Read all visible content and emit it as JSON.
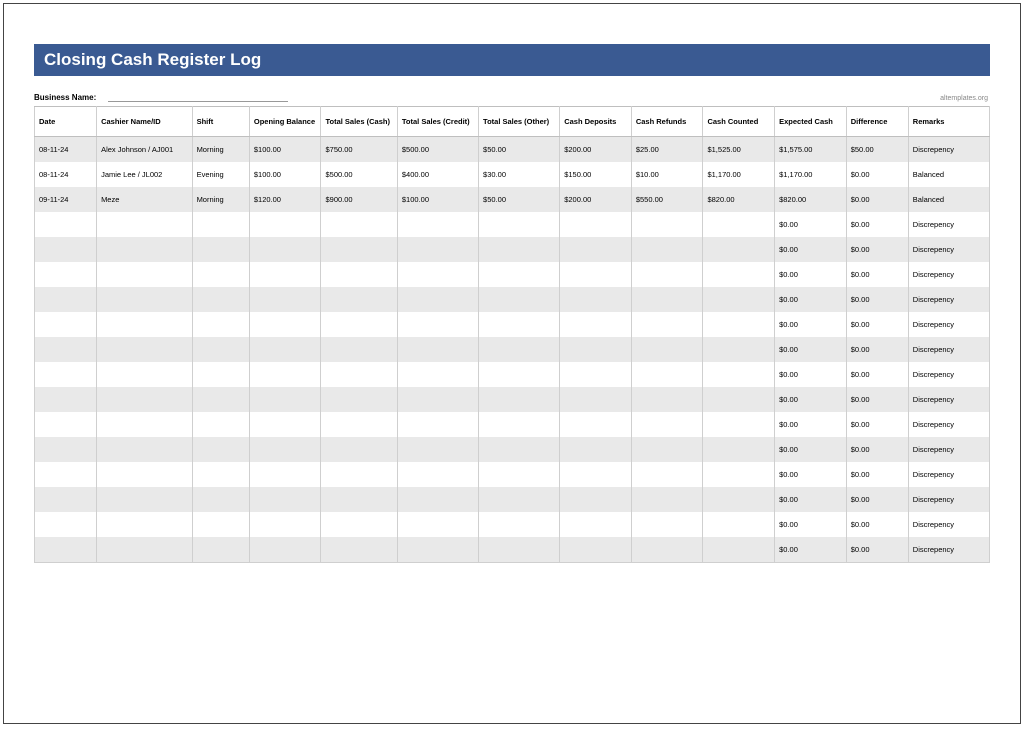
{
  "title": "Closing Cash Register Log",
  "business_label": "Business Name:",
  "business_value": "",
  "attribution": "altemplates.org",
  "colors": {
    "title_bg": "#3a5a92",
    "title_text": "#ffffff",
    "row_alt_bg": "#e9e9e9",
    "row_bg": "#ffffff",
    "border": "#cfcfcf"
  },
  "columns": [
    "Date",
    "Cashier Name/ID",
    "Shift",
    "Opening Balance",
    "Total Sales (Cash)",
    "Total Sales (Credit)",
    "Total Sales (Other)",
    "Cash Deposits",
    "Cash Refunds",
    "Cash Counted",
    "Expected Cash",
    "Difference",
    "Remarks"
  ],
  "rows": [
    [
      "08-11-24",
      "Alex Johnson / AJ001",
      "Morning",
      "$100.00",
      "$750.00",
      "$500.00",
      "$50.00",
      "$200.00",
      "$25.00",
      "$1,525.00",
      "$1,575.00",
      "$50.00",
      "Discrepency"
    ],
    [
      "08-11-24",
      "Jamie Lee / JL002",
      "Evening",
      "$100.00",
      "$500.00",
      "$400.00",
      "$30.00",
      "$150.00",
      "$10.00",
      "$1,170.00",
      "$1,170.00",
      "$0.00",
      "Balanced"
    ],
    [
      "09-11-24",
      "Meze",
      "Morning",
      "$120.00",
      "$900.00",
      "$100.00",
      "$50.00",
      "$200.00",
      "$550.00",
      "$820.00",
      "$820.00",
      "$0.00",
      "Balanced"
    ],
    [
      "",
      "",
      "",
      "",
      "",
      "",
      "",
      "",
      "",
      "",
      "$0.00",
      "$0.00",
      "Discrepency"
    ],
    [
      "",
      "",
      "",
      "",
      "",
      "",
      "",
      "",
      "",
      "",
      "$0.00",
      "$0.00",
      "Discrepency"
    ],
    [
      "",
      "",
      "",
      "",
      "",
      "",
      "",
      "",
      "",
      "",
      "$0.00",
      "$0.00",
      "Discrepency"
    ],
    [
      "",
      "",
      "",
      "",
      "",
      "",
      "",
      "",
      "",
      "",
      "$0.00",
      "$0.00",
      "Discrepency"
    ],
    [
      "",
      "",
      "",
      "",
      "",
      "",
      "",
      "",
      "",
      "",
      "$0.00",
      "$0.00",
      "Discrepency"
    ],
    [
      "",
      "",
      "",
      "",
      "",
      "",
      "",
      "",
      "",
      "",
      "$0.00",
      "$0.00",
      "Discrepency"
    ],
    [
      "",
      "",
      "",
      "",
      "",
      "",
      "",
      "",
      "",
      "",
      "$0.00",
      "$0.00",
      "Discrepency"
    ],
    [
      "",
      "",
      "",
      "",
      "",
      "",
      "",
      "",
      "",
      "",
      "$0.00",
      "$0.00",
      "Discrepency"
    ],
    [
      "",
      "",
      "",
      "",
      "",
      "",
      "",
      "",
      "",
      "",
      "$0.00",
      "$0.00",
      "Discrepency"
    ],
    [
      "",
      "",
      "",
      "",
      "",
      "",
      "",
      "",
      "",
      "",
      "$0.00",
      "$0.00",
      "Discrepency"
    ],
    [
      "",
      "",
      "",
      "",
      "",
      "",
      "",
      "",
      "",
      "",
      "$0.00",
      "$0.00",
      "Discrepency"
    ],
    [
      "",
      "",
      "",
      "",
      "",
      "",
      "",
      "",
      "",
      "",
      "$0.00",
      "$0.00",
      "Discrepency"
    ],
    [
      "",
      "",
      "",
      "",
      "",
      "",
      "",
      "",
      "",
      "",
      "$0.00",
      "$0.00",
      "Discrepency"
    ],
    [
      "",
      "",
      "",
      "",
      "",
      "",
      "",
      "",
      "",
      "",
      "$0.00",
      "$0.00",
      "Discrepency"
    ]
  ]
}
